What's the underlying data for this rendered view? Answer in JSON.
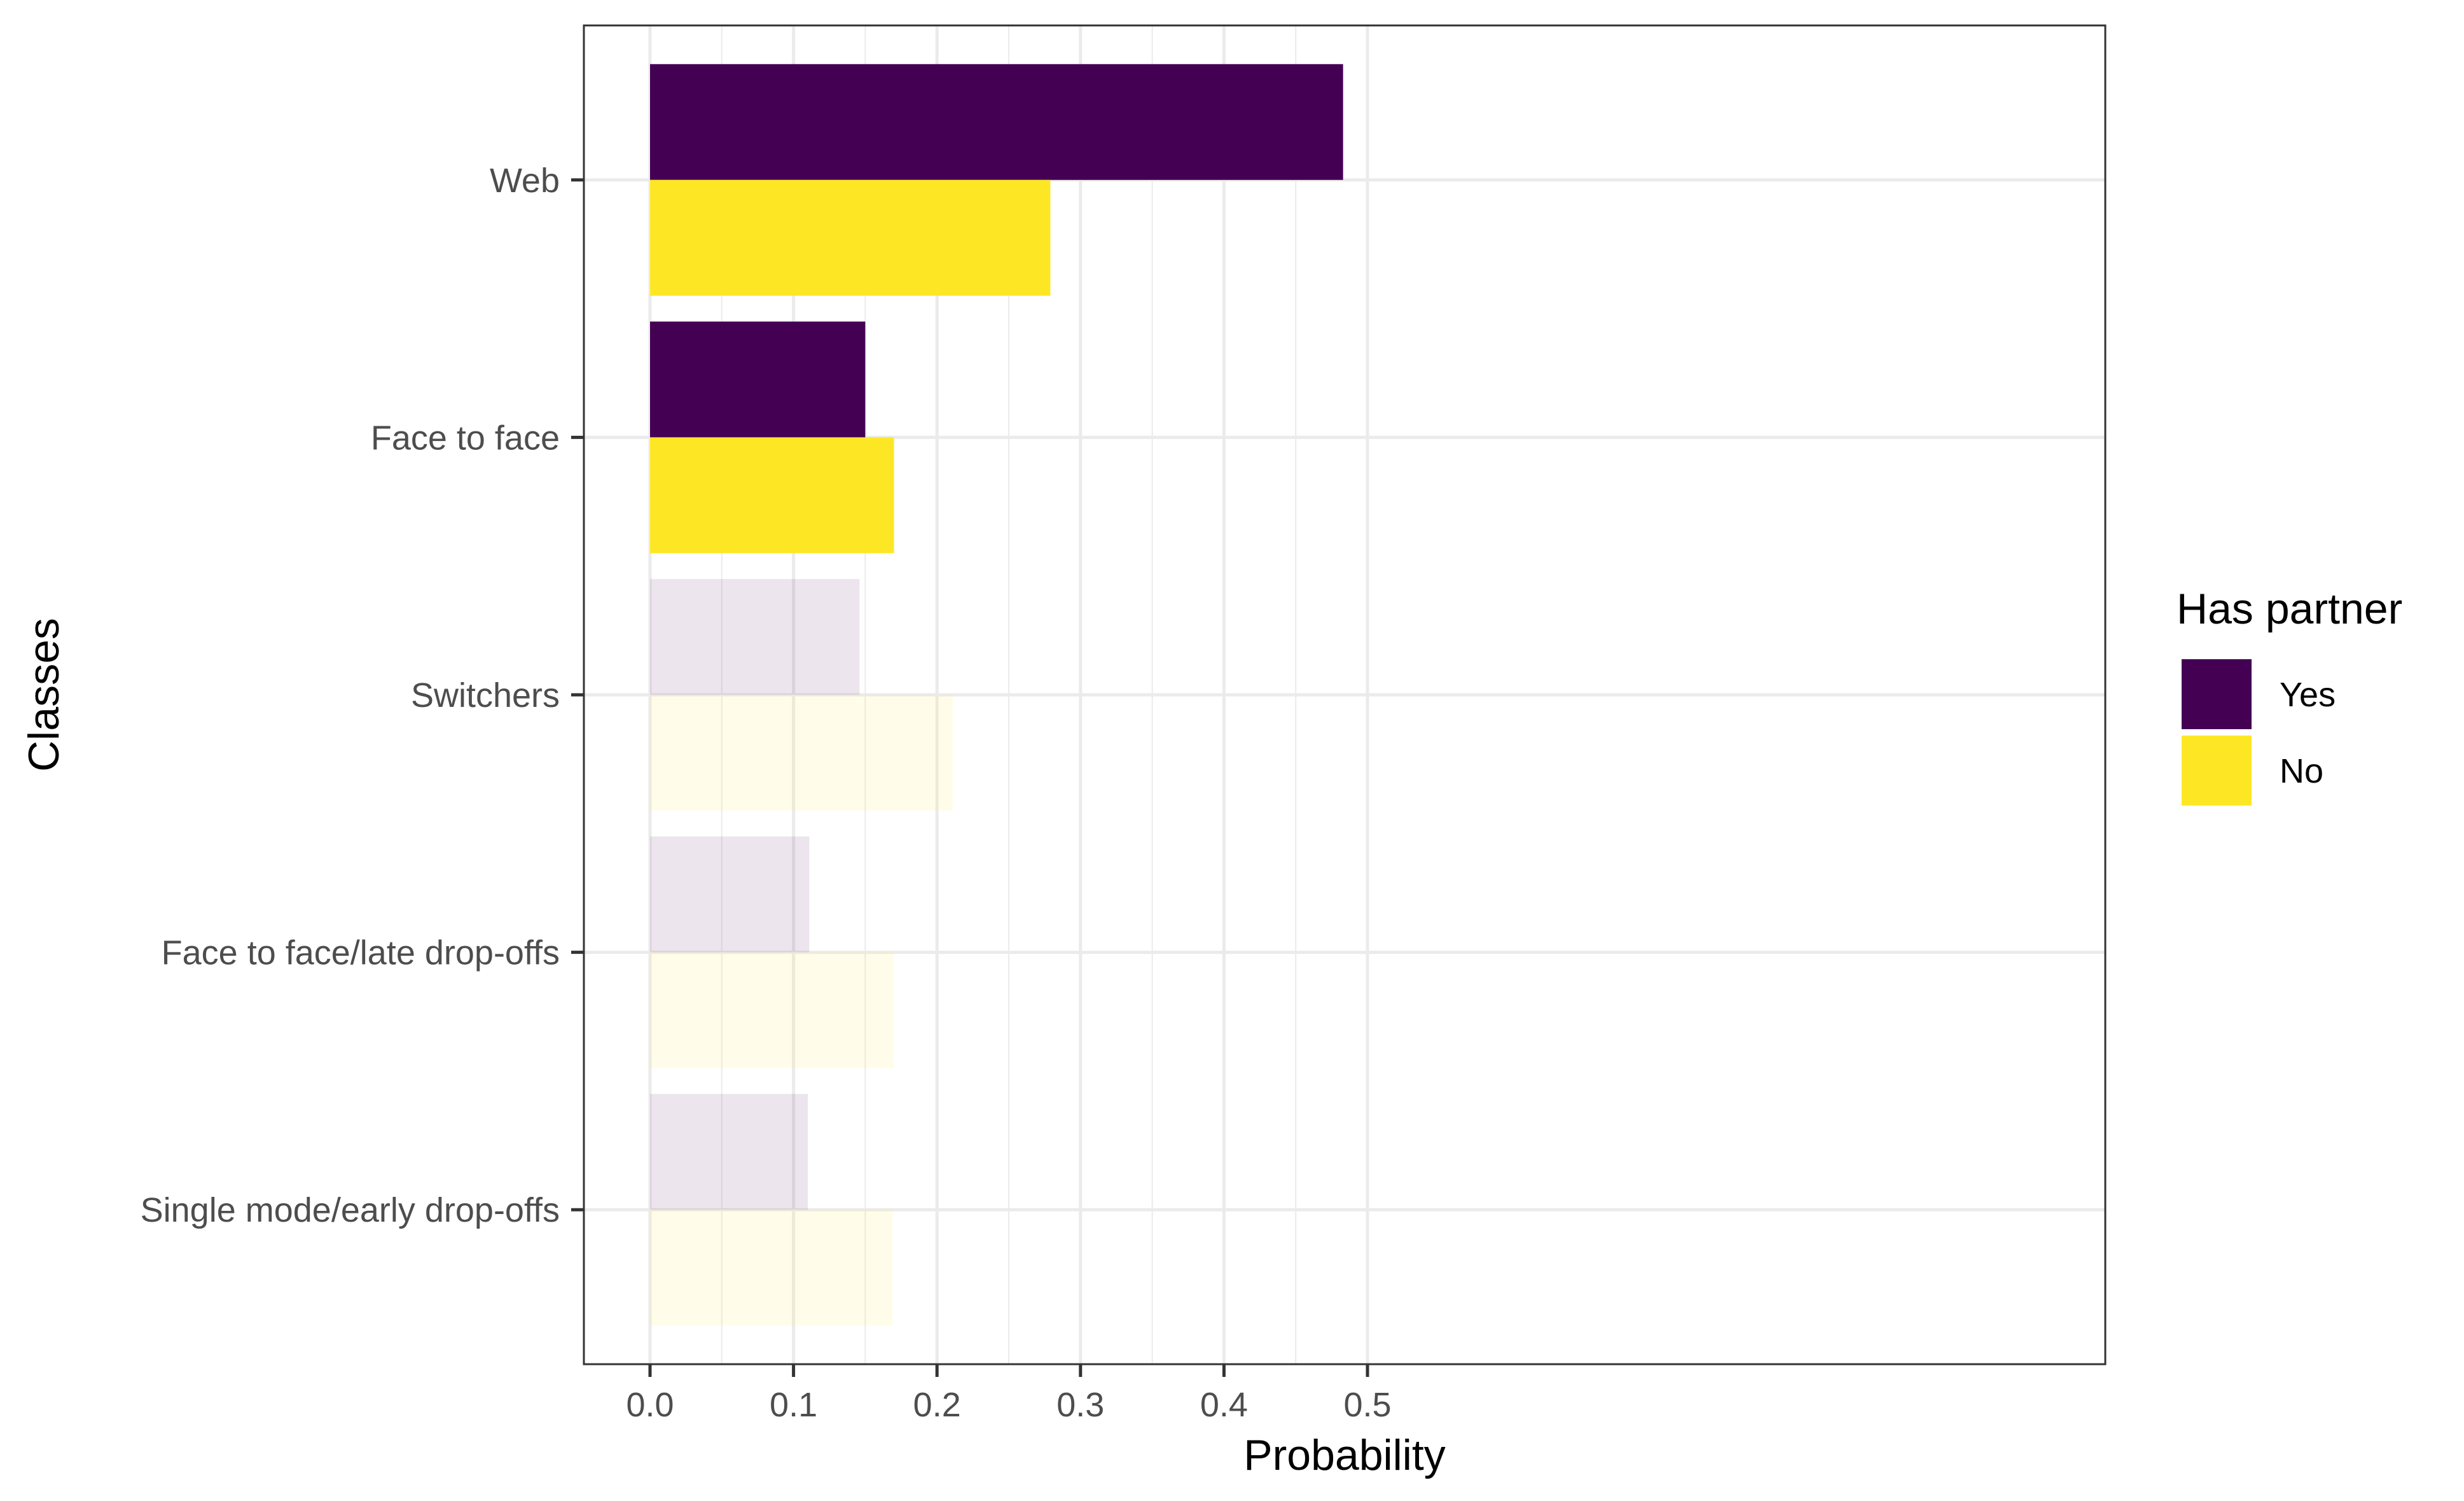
{
  "chart_data": {
    "type": "bar",
    "orientation": "horizontal",
    "categories": [
      "Web",
      "Face to face",
      "Switchers",
      "Face to face/late drop-offs",
      "Single mode/early drop-offs"
    ],
    "series": [
      {
        "name": "Yes",
        "values": [
          0.483,
          0.15,
          0.146,
          0.111,
          0.11
        ],
        "color": "#440154"
      },
      {
        "name": "No",
        "values": [
          0.279,
          0.17,
          0.211,
          0.17,
          0.169
        ],
        "color": "#FDE725"
      }
    ],
    "highlighted_categories": [
      "Web",
      "Face to face"
    ],
    "faded_opacity": 0.1,
    "xlabel": "Probability",
    "ylabel": "Classes",
    "xlim": [
      -0.023,
      0.5
    ],
    "x_ticks": [
      0.0,
      0.1,
      0.2,
      0.3,
      0.4,
      0.5
    ],
    "x_tick_labels": [
      "0.0",
      "0.1",
      "0.2",
      "0.3",
      "0.4",
      "0.5"
    ],
    "grid": true,
    "legend": {
      "title": "Has partner",
      "position": "right",
      "entries": [
        "Yes",
        "No"
      ]
    }
  }
}
